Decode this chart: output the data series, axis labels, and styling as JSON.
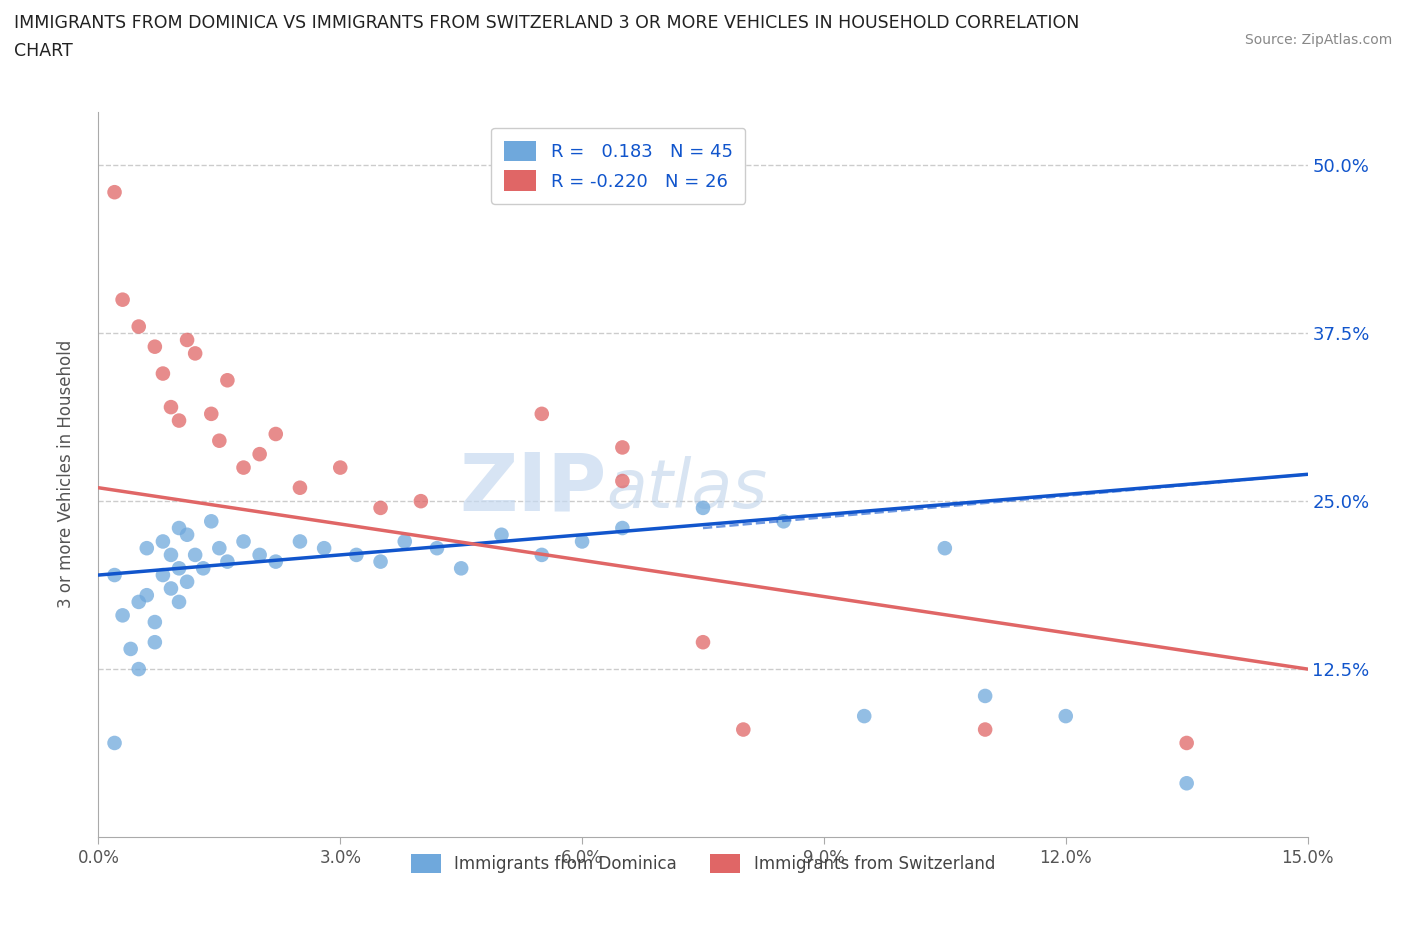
{
  "title_line1": "IMMIGRANTS FROM DOMINICA VS IMMIGRANTS FROM SWITZERLAND 3 OR MORE VEHICLES IN HOUSEHOLD CORRELATION",
  "title_line2": "CHART",
  "source": "Source: ZipAtlas.com",
  "ylabel": "3 or more Vehicles in Household",
  "x_tick_labels": [
    "0.0%",
    "3.0%",
    "6.0%",
    "9.0%",
    "12.0%",
    "15.0%"
  ],
  "x_tick_values": [
    0.0,
    3.0,
    6.0,
    9.0,
    12.0,
    15.0
  ],
  "y_tick_labels": [
    "12.5%",
    "25.0%",
    "37.5%",
    "50.0%"
  ],
  "y_tick_values": [
    12.5,
    25.0,
    37.5,
    50.0
  ],
  "xlim": [
    0.0,
    15.0
  ],
  "ylim": [
    0.0,
    54.0
  ],
  "legend1_label": "R =   0.183   N = 45",
  "legend2_label": "R = -0.220   N = 26",
  "legend_bottom1": "Immigrants from Dominica",
  "legend_bottom2": "Immigrants from Switzerland",
  "blue_color": "#6fa8dc",
  "pink_color": "#e06666",
  "blue_line_color": "#1155cc",
  "pink_line_color": "#e06666",
  "watermark_zip": "ZIP",
  "watermark_atlas": "atlas",
  "blue_scatter": [
    [
      0.2,
      19.5
    ],
    [
      0.3,
      16.5
    ],
    [
      0.4,
      14.0
    ],
    [
      0.5,
      17.5
    ],
    [
      0.5,
      12.5
    ],
    [
      0.6,
      21.5
    ],
    [
      0.6,
      18.0
    ],
    [
      0.7,
      16.0
    ],
    [
      0.7,
      14.5
    ],
    [
      0.8,
      22.0
    ],
    [
      0.8,
      19.5
    ],
    [
      0.9,
      21.0
    ],
    [
      0.9,
      18.5
    ],
    [
      1.0,
      23.0
    ],
    [
      1.0,
      20.0
    ],
    [
      1.0,
      17.5
    ],
    [
      1.1,
      22.5
    ],
    [
      1.1,
      19.0
    ],
    [
      1.2,
      21.0
    ],
    [
      1.3,
      20.0
    ],
    [
      1.4,
      23.5
    ],
    [
      1.5,
      21.5
    ],
    [
      1.6,
      20.5
    ],
    [
      1.8,
      22.0
    ],
    [
      2.0,
      21.0
    ],
    [
      2.2,
      20.5
    ],
    [
      2.5,
      22.0
    ],
    [
      2.8,
      21.5
    ],
    [
      3.2,
      21.0
    ],
    [
      3.5,
      20.5
    ],
    [
      3.8,
      22.0
    ],
    [
      4.2,
      21.5
    ],
    [
      4.5,
      20.0
    ],
    [
      5.0,
      22.5
    ],
    [
      5.5,
      21.0
    ],
    [
      6.0,
      22.0
    ],
    [
      6.5,
      23.0
    ],
    [
      7.5,
      24.5
    ],
    [
      8.5,
      23.5
    ],
    [
      9.5,
      9.0
    ],
    [
      10.5,
      21.5
    ],
    [
      11.0,
      10.5
    ],
    [
      12.0,
      9.0
    ],
    [
      13.5,
      4.0
    ],
    [
      0.2,
      7.0
    ]
  ],
  "pink_scatter": [
    [
      0.2,
      48.0
    ],
    [
      0.3,
      40.0
    ],
    [
      0.5,
      38.0
    ],
    [
      0.7,
      36.5
    ],
    [
      0.8,
      34.5
    ],
    [
      0.9,
      32.0
    ],
    [
      1.0,
      31.0
    ],
    [
      1.1,
      37.0
    ],
    [
      1.2,
      36.0
    ],
    [
      1.4,
      31.5
    ],
    [
      1.5,
      29.5
    ],
    [
      1.6,
      34.0
    ],
    [
      1.8,
      27.5
    ],
    [
      2.0,
      28.5
    ],
    [
      2.2,
      30.0
    ],
    [
      2.5,
      26.0
    ],
    [
      3.0,
      27.5
    ],
    [
      3.5,
      24.5
    ],
    [
      4.0,
      25.0
    ],
    [
      5.5,
      31.5
    ],
    [
      6.5,
      26.5
    ],
    [
      6.5,
      29.0
    ],
    [
      7.5,
      14.5
    ],
    [
      8.0,
      8.0
    ],
    [
      11.0,
      8.0
    ],
    [
      13.5,
      7.0
    ]
  ],
  "blue_line_x0": 0.0,
  "blue_line_y0": 19.5,
  "blue_line_x1": 15.0,
  "blue_line_y1": 27.0,
  "pink_line_x0": 0.0,
  "pink_line_y0": 26.0,
  "pink_line_x1": 15.0,
  "pink_line_y1": 12.5,
  "blue_dash_x0": 7.5,
  "blue_dash_y0": 23.0,
  "blue_dash_x1": 15.0,
  "blue_dash_y1": 27.0
}
